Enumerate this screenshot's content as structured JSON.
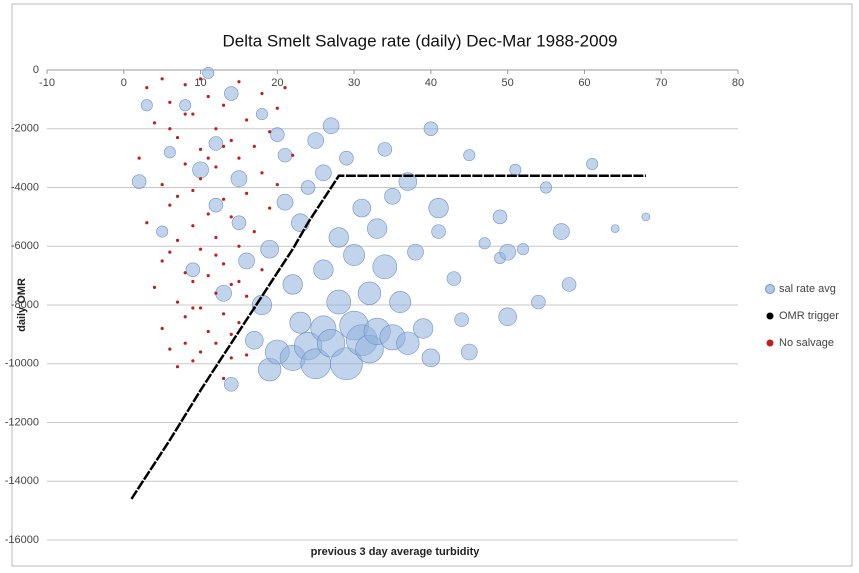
{
  "chart_data": {
    "type": "bubble",
    "title": "Delta Smelt Salvage rate (daily) Dec-Mar 1988-2009",
    "x_label": "previous  3 day  average turbidity",
    "y_label": "daily OMR",
    "xlim": [
      -10,
      80
    ],
    "xticks": [
      -10,
      0,
      10,
      20,
      30,
      40,
      50,
      60,
      70,
      80
    ],
    "ylim": [
      -16000,
      0
    ],
    "yticks": [
      0,
      -2000,
      -4000,
      -6000,
      -8000,
      -10000,
      -12000,
      -14000,
      -16000
    ],
    "grid": true,
    "legend": "right",
    "series": [
      {
        "name": "sal rate avg",
        "color": "#8fb0dc",
        "x": [
          2,
          5,
          8,
          10,
          11,
          12,
          13,
          14,
          15,
          16,
          17,
          18,
          19,
          20,
          20,
          21,
          22,
          22,
          23,
          24,
          24,
          25,
          25,
          26,
          26,
          27,
          27,
          28,
          28,
          29,
          29,
          30,
          30,
          31,
          31,
          32,
          32,
          33,
          33,
          34,
          34,
          35,
          35,
          36,
          37,
          37,
          38,
          39,
          40,
          40,
          41,
          41,
          43,
          44,
          45,
          45,
          47,
          49,
          49,
          50,
          50,
          51,
          52,
          54,
          55,
          57,
          58,
          61,
          64,
          68,
          3,
          6,
          9,
          12,
          14,
          15,
          18,
          19,
          21,
          23,
          26
        ],
        "values": [
          -3800,
          -5500,
          -1200,
          -3400,
          -100,
          -2500,
          -7600,
          -800,
          -5200,
          -6500,
          -9200,
          -8000,
          -10200,
          -2200,
          -9600,
          -4500,
          -7300,
          -9800,
          -8600,
          -4000,
          -9400,
          -2400,
          -10000,
          -6800,
          -8800,
          -1900,
          -9300,
          -5700,
          -7900,
          -10000,
          -3000,
          -8700,
          -6300,
          -9200,
          -4700,
          -7600,
          -9500,
          -5400,
          -8900,
          -2700,
          -6700,
          -9100,
          -4300,
          -7900,
          -3800,
          -9300,
          -6200,
          -8800,
          -2000,
          -9800,
          -5500,
          -4700,
          -7100,
          -8500,
          -2900,
          -9600,
          -5900,
          -5000,
          -6400,
          -6200,
          -8400,
          -3400,
          -6100,
          -7900,
          -4000,
          -5500,
          -7300,
          -3200,
          -5400,
          -5000,
          -1200,
          -2800,
          -6800,
          -4600,
          -10700,
          -3700,
          -1500,
          -6100,
          -2900,
          -5200,
          -3500
        ],
        "sizes": [
          3,
          2,
          2,
          4,
          2,
          3,
          4,
          3,
          3,
          4,
          5,
          6,
          8,
          3,
          9,
          4,
          6,
          10,
          7,
          3,
          12,
          4,
          14,
          6,
          10,
          4,
          12,
          6,
          9,
          16,
          3,
          13,
          7,
          15,
          5,
          8,
          12,
          6,
          11,
          3,
          9,
          10,
          4,
          7,
          5,
          8,
          4,
          6,
          3,
          5,
          3,
          6,
          3,
          3,
          2,
          4,
          2,
          3,
          2,
          4,
          5,
          2,
          2,
          3,
          2,
          4,
          3,
          2,
          1,
          1,
          2,
          2,
          3,
          3,
          3,
          4,
          2,
          5,
          3,
          5,
          4
        ]
      },
      {
        "name": "OMR trigger",
        "color": "#000000",
        "x": [
          1,
          2,
          4,
          6,
          8,
          10,
          12,
          14,
          16,
          18,
          20,
          22,
          24,
          26,
          28,
          30,
          32,
          34,
          36,
          38,
          40,
          42,
          44,
          46,
          48,
          50,
          52,
          54,
          56,
          58,
          60,
          62,
          64,
          68
        ],
        "values": [
          -14600,
          -14200,
          -13400,
          -12600,
          -11750,
          -10900,
          -10100,
          -9300,
          -8500,
          -7700,
          -6900,
          -6100,
          -5200,
          -4400,
          -3600,
          -3600,
          -3600,
          -3600,
          -3600,
          -3600,
          -3600,
          -3600,
          -3600,
          -3600,
          -3600,
          -3600,
          -3600,
          -3600,
          -3600,
          -3600,
          -3600,
          -3600,
          -3600,
          -3600
        ]
      },
      {
        "name": "No salvage",
        "color": "#c0201c",
        "x": [
          2,
          3,
          3,
          4,
          4,
          5,
          5,
          5,
          6,
          6,
          6,
          6,
          7,
          7,
          7,
          7,
          8,
          8,
          8,
          8,
          8,
          9,
          9,
          9,
          9,
          9,
          10,
          10,
          10,
          10,
          10,
          11,
          11,
          11,
          11,
          12,
          12,
          12,
          12,
          12,
          13,
          13,
          13,
          13,
          13,
          14,
          14,
          14,
          14,
          15,
          15,
          15,
          15,
          16,
          16,
          16,
          16,
          17,
          17,
          17,
          18,
          18,
          18,
          19,
          19,
          20,
          20,
          21,
          22,
          5,
          6,
          7,
          8,
          9,
          10,
          11,
          12,
          13,
          14,
          15
        ],
        "values": [
          -3000,
          -600,
          -5200,
          -1800,
          -7400,
          -300,
          -3900,
          -8800,
          -1100,
          -4600,
          -6200,
          -9500,
          -2300,
          -5800,
          -7900,
          -10100,
          -500,
          -3200,
          -6900,
          -8400,
          -9300,
          -1500,
          -4100,
          -5300,
          -7200,
          -9900,
          -2700,
          -3700,
          -6100,
          -8100,
          -9600,
          -900,
          -4900,
          -7000,
          -8900,
          -2000,
          -3300,
          -5700,
          -7600,
          -9300,
          -1200,
          -4400,
          -6600,
          -8300,
          -10500,
          -2400,
          -5000,
          -7300,
          -9000,
          -400,
          -3000,
          -6000,
          -8600,
          -1700,
          -4200,
          -7700,
          -9700,
          -2600,
          -5500,
          -8100,
          -800,
          -3500,
          -6800,
          -2100,
          -4700,
          -1300,
          -3900,
          -600,
          -2900,
          -6500,
          -2000,
          -4300,
          -1500,
          -8100,
          -300,
          -3000,
          -6300,
          -2600,
          -9800,
          -7200
        ]
      }
    ]
  }
}
